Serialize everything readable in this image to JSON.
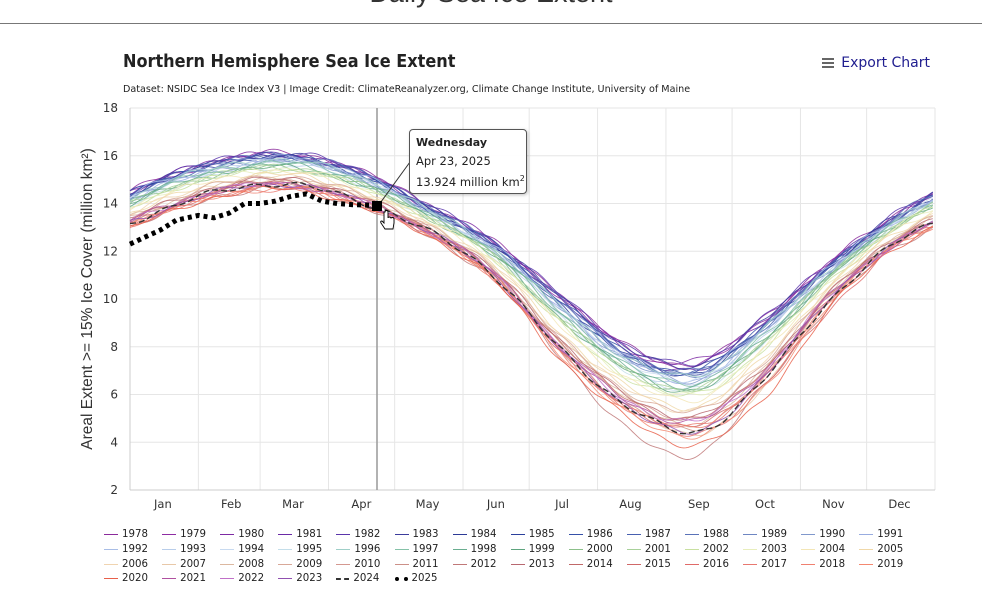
{
  "page": {
    "heading": "Daily Sea Ice Extent"
  },
  "chart": {
    "export_label": "Export Chart",
    "export_icon": "hamburger-menu-icon"
  },
  "tooltip": {
    "day": "Wednesday",
    "date": "Apr 23, 2025",
    "value_text": "13.924 million km",
    "unit_exponent": "2"
  },
  "chart_data": {
    "type": "line",
    "title": "Northern Hemisphere Sea Ice Extent",
    "subtitle": "Dataset: NSIDC Sea Ice Index V3 | Image Credit: ClimateReanalyzer.org, Climate Change Institute, University of Maine",
    "ylabel": "Areal Extent >= 15% Ice Cover (million km²)",
    "xlabel": "",
    "ylim": [
      2,
      18
    ],
    "yticks": [
      "2",
      "4",
      "6",
      "8",
      "10",
      "12",
      "14",
      "16",
      "18"
    ],
    "xticks": [
      "Jan",
      "Feb",
      "Mar",
      "Apr",
      "May",
      "Jun",
      "Jul",
      "Aug",
      "Sep",
      "Oct",
      "Nov",
      "Dec"
    ],
    "grid": true,
    "legend_position": "bottom",
    "monthly_values_note_categories": [
      "Jan",
      "Feb",
      "Mar",
      "Apr",
      "May",
      "Jun",
      "Jul",
      "Aug",
      "Sep",
      "Oct",
      "Nov",
      "Dec"
    ],
    "highlighted_point": {
      "series": "2025",
      "date": "2025-04-23",
      "value": 13.924
    },
    "series": [
      {
        "name": "1978",
        "color": "#8b2a9b",
        "values": [
          15.1,
          15.9,
          16.1,
          15.4,
          14.0,
          12.4,
          10.2,
          8.0,
          7.3,
          9.2,
          11.6,
          13.6
        ]
      },
      {
        "name": "1979",
        "color": "#8e2ca3",
        "values": [
          15.0,
          15.8,
          16.0,
          15.3,
          13.9,
          12.3,
          10.1,
          7.9,
          7.2,
          9.1,
          11.5,
          13.5
        ]
      },
      {
        "name": "1980",
        "color": "#7d2aa3",
        "values": [
          15.0,
          15.9,
          16.0,
          15.3,
          14.0,
          12.4,
          10.1,
          7.9,
          7.4,
          9.1,
          11.5,
          13.5
        ]
      },
      {
        "name": "1981",
        "color": "#6a2aa6",
        "values": [
          15.0,
          15.8,
          16.0,
          15.3,
          13.9,
          12.3,
          10.0,
          7.7,
          7.0,
          8.9,
          11.4,
          13.5
        ]
      },
      {
        "name": "1982",
        "color": "#5a35ab",
        "values": [
          15.1,
          15.9,
          16.1,
          15.4,
          14.0,
          12.4,
          10.2,
          8.0,
          7.3,
          9.2,
          11.6,
          13.6
        ]
      },
      {
        "name": "1983",
        "color": "#3c3c9c",
        "values": [
          15.0,
          15.8,
          16.0,
          15.3,
          13.9,
          12.3,
          10.1,
          7.9,
          7.2,
          9.1,
          11.5,
          13.5
        ]
      },
      {
        "name": "1984",
        "color": "#2c3a96",
        "values": [
          14.9,
          15.7,
          15.9,
          15.2,
          13.8,
          12.2,
          9.8,
          7.6,
          6.9,
          8.8,
          11.4,
          13.4
        ]
      },
      {
        "name": "1985",
        "color": "#2b409c",
        "values": [
          14.9,
          15.7,
          15.9,
          15.2,
          13.8,
          12.2,
          9.8,
          7.6,
          6.9,
          8.8,
          11.4,
          13.4
        ]
      },
      {
        "name": "1986",
        "color": "#3550a8",
        "values": [
          15.0,
          15.8,
          16.0,
          15.3,
          13.9,
          12.3,
          10.0,
          7.7,
          7.0,
          8.9,
          11.4,
          13.5
        ]
      },
      {
        "name": "1987",
        "color": "#4760b0",
        "values": [
          14.9,
          15.7,
          15.9,
          15.2,
          13.8,
          12.2,
          9.8,
          7.6,
          6.9,
          8.8,
          11.4,
          13.4
        ]
      },
      {
        "name": "1988",
        "color": "#5a72b8",
        "values": [
          15.0,
          15.8,
          16.0,
          15.3,
          13.9,
          12.3,
          10.0,
          7.7,
          7.0,
          8.9,
          11.4,
          13.5
        ]
      },
      {
        "name": "1989",
        "color": "#6e86c2",
        "values": [
          14.8,
          15.6,
          15.8,
          15.1,
          13.8,
          12.1,
          9.7,
          7.5,
          6.8,
          8.7,
          11.3,
          13.3
        ]
      },
      {
        "name": "1990",
        "color": "#8098cc",
        "values": [
          14.7,
          15.5,
          15.8,
          15.1,
          13.7,
          12.0,
          9.6,
          7.4,
          6.6,
          8.6,
          11.2,
          13.3
        ]
      },
      {
        "name": "1991",
        "color": "#98ace0",
        "values": [
          14.7,
          15.5,
          15.8,
          15.1,
          13.7,
          12.0,
          9.6,
          7.4,
          6.6,
          8.6,
          11.2,
          13.3
        ]
      },
      {
        "name": "1992",
        "color": "#a8bde6",
        "values": [
          14.9,
          15.7,
          15.9,
          15.2,
          13.8,
          12.2,
          9.8,
          7.6,
          6.9,
          8.8,
          11.4,
          13.4
        ]
      },
      {
        "name": "1993",
        "color": "#b8cdea",
        "values": [
          14.7,
          15.5,
          15.7,
          15.0,
          13.6,
          12.0,
          9.5,
          7.2,
          6.5,
          8.4,
          11.1,
          13.2
        ]
      },
      {
        "name": "1994",
        "color": "#c8daf0",
        "values": [
          14.7,
          15.5,
          15.8,
          15.1,
          13.7,
          12.0,
          9.6,
          7.4,
          6.6,
          8.6,
          11.2,
          13.3
        ]
      },
      {
        "name": "1995",
        "color": "#c4deea",
        "values": [
          14.5,
          15.3,
          15.5,
          14.8,
          13.5,
          11.8,
          9.2,
          7.0,
          6.2,
          8.2,
          11.0,
          13.1
        ]
      },
      {
        "name": "1996",
        "color": "#9fcfc8",
        "values": [
          14.8,
          15.6,
          15.8,
          15.1,
          13.8,
          12.1,
          9.7,
          7.5,
          6.8,
          8.7,
          11.3,
          13.3
        ]
      },
      {
        "name": "1997",
        "color": "#85c2a8",
        "values": [
          14.7,
          15.5,
          15.7,
          15.0,
          13.6,
          12.0,
          9.5,
          7.2,
          6.5,
          8.4,
          11.1,
          13.2
        ]
      },
      {
        "name": "1998",
        "color": "#6aae90",
        "values": [
          14.6,
          15.4,
          15.6,
          14.9,
          13.6,
          11.9,
          9.4,
          7.1,
          6.4,
          8.3,
          11.0,
          13.1
        ]
      },
      {
        "name": "1999",
        "color": "#5ea47e",
        "values": [
          14.5,
          15.3,
          15.5,
          14.8,
          13.5,
          11.8,
          9.2,
          7.0,
          6.2,
          8.2,
          11.0,
          13.1
        ]
      },
      {
        "name": "2000",
        "color": "#8cc08a",
        "values": [
          14.5,
          15.3,
          15.5,
          14.8,
          13.5,
          11.8,
          9.2,
          7.0,
          6.2,
          8.2,
          11.0,
          13.1
        ]
      },
      {
        "name": "2001",
        "color": "#a8d19a",
        "values": [
          14.5,
          15.3,
          15.5,
          14.8,
          13.5,
          11.8,
          9.2,
          7.0,
          6.2,
          8.2,
          11.0,
          13.1
        ]
      },
      {
        "name": "2002",
        "color": "#c8e0a0",
        "values": [
          14.4,
          15.2,
          15.4,
          14.7,
          13.4,
          11.7,
          9.0,
          6.7,
          6.0,
          7.9,
          10.8,
          13.0
        ]
      },
      {
        "name": "2003",
        "color": "#e8eebc",
        "values": [
          14.4,
          15.2,
          15.4,
          14.7,
          13.4,
          11.7,
          9.0,
          6.7,
          6.0,
          7.9,
          10.8,
          13.0
        ]
      },
      {
        "name": "2004",
        "color": "#f3e6b6",
        "values": [
          14.3,
          15.1,
          15.3,
          14.6,
          13.3,
          11.6,
          8.9,
          6.6,
          5.8,
          7.8,
          10.7,
          12.9
        ]
      },
      {
        "name": "2005",
        "color": "#f0d8a8",
        "values": [
          14.1,
          15.0,
          15.2,
          14.5,
          13.2,
          11.4,
          8.6,
          6.3,
          5.5,
          7.5,
          10.6,
          12.8
        ]
      },
      {
        "name": "2006",
        "color": "#f0d4b0",
        "values": [
          14.1,
          14.9,
          15.1,
          14.4,
          13.2,
          11.4,
          8.5,
          6.2,
          5.4,
          7.4,
          10.5,
          12.7
        ]
      },
      {
        "name": "2007",
        "color": "#e8c8a8",
        "values": [
          13.8,
          14.7,
          14.9,
          14.2,
          13.0,
          11.1,
          8.2,
          5.8,
          4.3,
          6.3,
          10.2,
          12.5
        ]
      },
      {
        "name": "2008",
        "color": "#dcb8a0",
        "values": [
          13.9,
          14.8,
          15.0,
          14.3,
          13.0,
          11.2,
          8.3,
          5.9,
          4.7,
          7.1,
          10.3,
          12.6
        ]
      },
      {
        "name": "2009",
        "color": "#d8a898",
        "values": [
          14.0,
          14.9,
          15.1,
          14.4,
          13.1,
          11.3,
          8.4,
          6.1,
          5.3,
          7.3,
          10.4,
          12.6
        ]
      },
      {
        "name": "2010",
        "color": "#d49890",
        "values": [
          13.8,
          14.7,
          14.9,
          14.2,
          13.0,
          11.1,
          8.2,
          5.8,
          5.0,
          7.0,
          10.2,
          12.5
        ]
      },
      {
        "name": "2011",
        "color": "#cc9088",
        "values": [
          13.7,
          14.6,
          14.8,
          14.1,
          12.9,
          11.0,
          7.9,
          5.5,
          4.6,
          6.7,
          10.1,
          12.4
        ]
      },
      {
        "name": "2012",
        "color": "#c07878",
        "values": [
          13.5,
          14.4,
          14.6,
          13.9,
          12.7,
          10.8,
          7.6,
          4.5,
          3.5,
          6.3,
          9.8,
          12.2
        ]
      },
      {
        "name": "2013",
        "color": "#b86870",
        "values": [
          13.9,
          14.8,
          15.0,
          14.3,
          13.0,
          11.2,
          8.3,
          5.9,
          5.1,
          7.1,
          10.3,
          12.6
        ]
      },
      {
        "name": "2014",
        "color": "#c06868",
        "values": [
          13.8,
          14.7,
          14.9,
          14.2,
          13.0,
          11.1,
          8.2,
          5.8,
          5.0,
          7.0,
          10.2,
          12.5
        ]
      },
      {
        "name": "2015",
        "color": "#d06868",
        "values": [
          13.7,
          14.6,
          14.8,
          14.1,
          12.9,
          11.0,
          7.9,
          5.5,
          4.7,
          6.7,
          10.1,
          12.4
        ]
      },
      {
        "name": "2016",
        "color": "#e06a68",
        "values": [
          13.6,
          14.5,
          14.7,
          14.0,
          12.8,
          10.9,
          7.8,
          5.4,
          4.3,
          6.4,
          9.6,
          12.3
        ]
      },
      {
        "name": "2017",
        "color": "#e87870",
        "values": [
          13.6,
          14.4,
          14.6,
          14.0,
          12.8,
          10.9,
          7.8,
          5.4,
          4.7,
          6.6,
          10.0,
          12.3
        ]
      },
      {
        "name": "2018",
        "color": "#f08070",
        "values": [
          13.6,
          14.4,
          14.6,
          14.0,
          12.8,
          10.9,
          7.8,
          5.4,
          4.7,
          6.6,
          10.0,
          12.3
        ]
      },
      {
        "name": "2019",
        "color": "#f48870",
        "values": [
          13.6,
          14.5,
          14.7,
          14.0,
          12.8,
          10.9,
          7.7,
          5.2,
          4.3,
          6.2,
          9.9,
          12.3
        ]
      },
      {
        "name": "2020",
        "color": "#e8604a",
        "values": [
          13.5,
          14.4,
          14.6,
          13.9,
          12.7,
          10.8,
          7.5,
          5.0,
          3.9,
          5.8,
          9.7,
          12.2
        ]
      },
      {
        "name": "2021",
        "color": "#b050a0",
        "values": [
          13.8,
          14.6,
          14.8,
          14.1,
          12.9,
          11.1,
          8.0,
          5.7,
          4.9,
          6.9,
          10.2,
          12.4
        ]
      },
      {
        "name": "2022",
        "color": "#c070c8",
        "values": [
          13.8,
          14.6,
          14.8,
          14.1,
          12.9,
          11.1,
          8.0,
          5.7,
          4.9,
          6.9,
          10.2,
          12.4
        ]
      },
      {
        "name": "2023",
        "color": "#9050b0",
        "values": [
          13.7,
          14.6,
          14.8,
          14.1,
          12.9,
          11.0,
          7.9,
          5.5,
          4.4,
          6.7,
          10.1,
          12.4
        ]
      },
      {
        "name": "2024",
        "color": "#333333",
        "dash": "dash",
        "values": [
          13.7,
          14.6,
          14.8,
          14.1,
          12.9,
          11.0,
          7.9,
          5.5,
          4.4,
          6.6,
          10.0,
          12.4
        ]
      },
      {
        "name": "2025",
        "color": "#000000",
        "dash": "dot",
        "points": [
          {
            "date": "2025-01-01",
            "value": 12.3
          },
          {
            "date": "2025-01-08",
            "value": 12.6
          },
          {
            "date": "2025-01-15",
            "value": 12.9
          },
          {
            "date": "2025-01-22",
            "value": 13.3
          },
          {
            "date": "2025-02-01",
            "value": 13.5
          },
          {
            "date": "2025-02-08",
            "value": 13.4
          },
          {
            "date": "2025-02-15",
            "value": 13.6
          },
          {
            "date": "2025-02-22",
            "value": 14.0
          },
          {
            "date": "2025-03-01",
            "value": 14.0
          },
          {
            "date": "2025-03-08",
            "value": 14.1
          },
          {
            "date": "2025-03-15",
            "value": 14.3
          },
          {
            "date": "2025-03-22",
            "value": 14.4
          },
          {
            "date": "2025-03-29",
            "value": 14.1
          },
          {
            "date": "2025-04-05",
            "value": 14.0
          },
          {
            "date": "2025-04-12",
            "value": 13.95
          },
          {
            "date": "2025-04-23",
            "value": 13.924
          }
        ]
      }
    ]
  }
}
